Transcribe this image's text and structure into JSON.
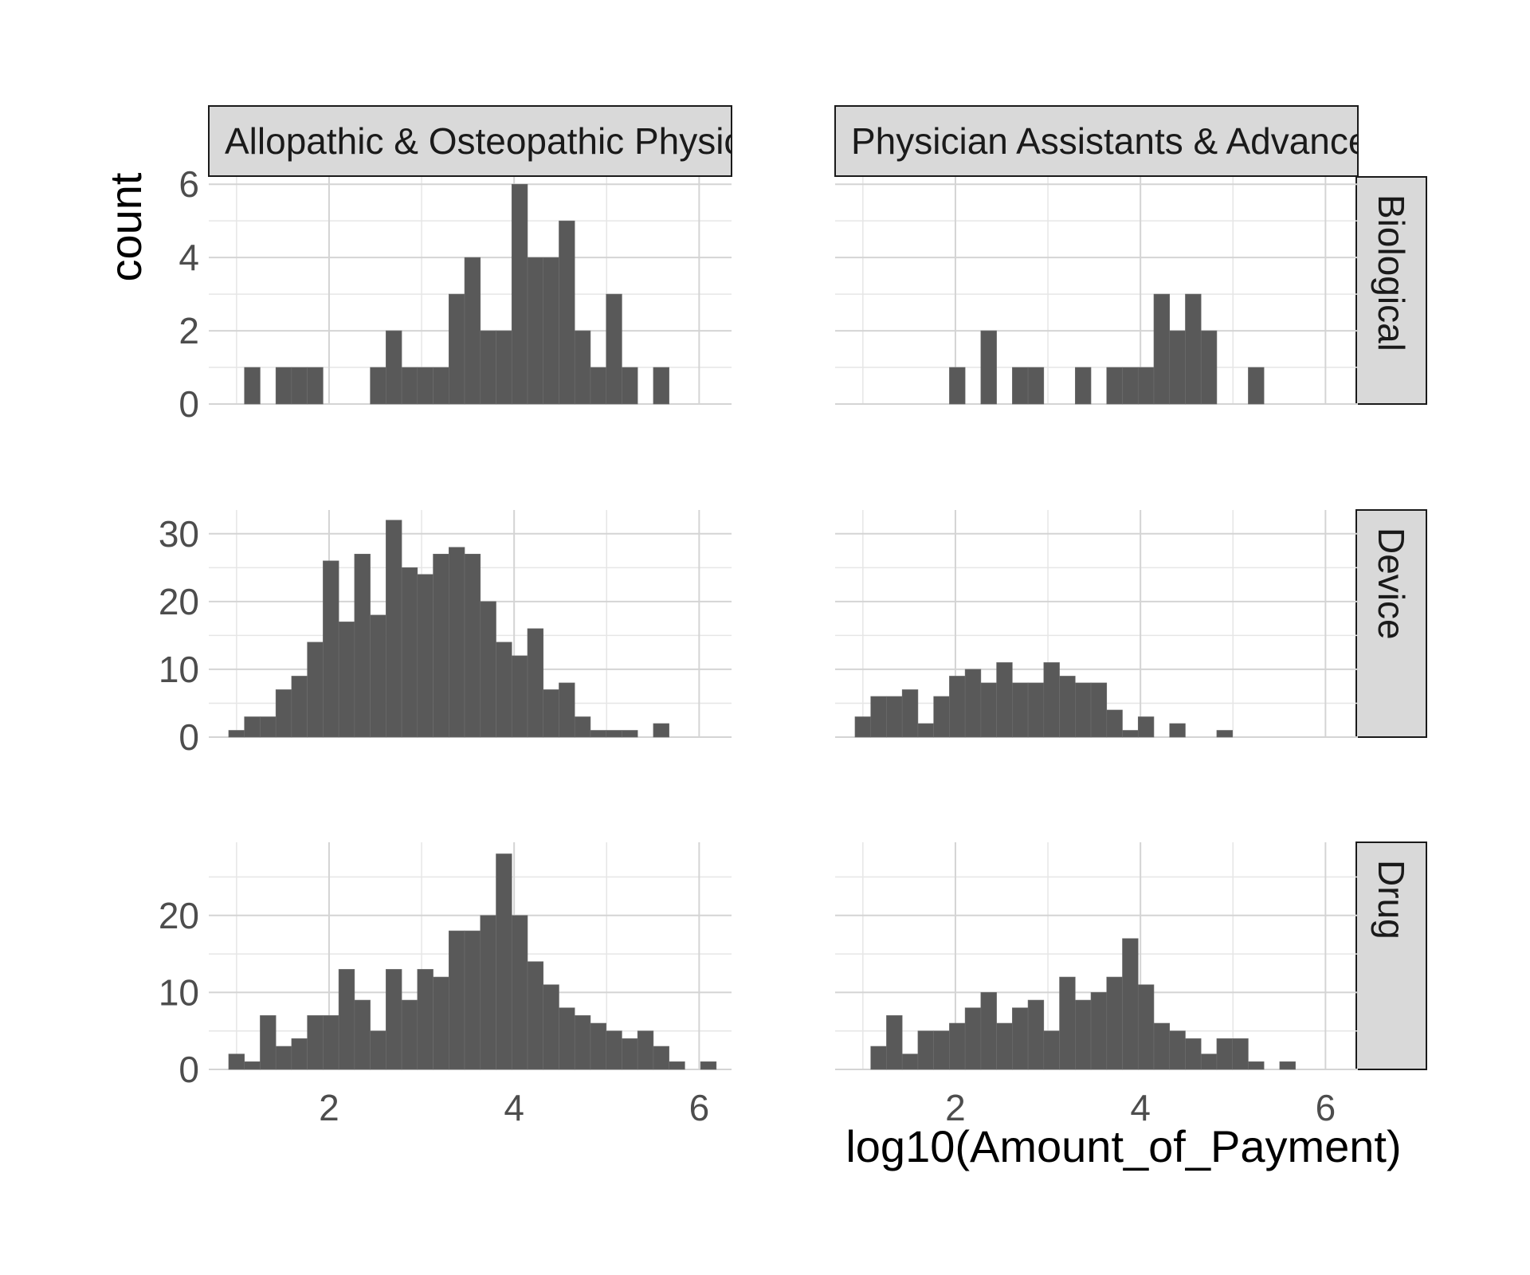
{
  "chart_data": {
    "type": "bar",
    "xlabel": "log10(Amount_of_Payment)",
    "ylabel": "count",
    "bin_width": 0.17,
    "first_bin_center": 1.0,
    "xlim": [
      0.7,
      6.35
    ],
    "x_ticks": [
      2,
      4,
      6
    ],
    "columns": [
      "Allopathic & Osteopathic Physicia",
      "Physician Assistants & Advanced"
    ],
    "rows": [
      {
        "name": "Biological",
        "ylim": [
          0,
          6.2
        ],
        "y_ticks": [
          0,
          2,
          4,
          6
        ],
        "panels": [
          {
            "counts": [
              0,
              1,
              0,
              1,
              1,
              1,
              0,
              0,
              0,
              1,
              2,
              1,
              1,
              1,
              3,
              4,
              2,
              2,
              6,
              4,
              4,
              5,
              2,
              1,
              3,
              1,
              0,
              1,
              0,
              0,
              0,
              0
            ]
          },
          {
            "counts": [
              0,
              0,
              0,
              0,
              0,
              0,
              1,
              0,
              2,
              0,
              1,
              1,
              0,
              0,
              1,
              0,
              1,
              1,
              1,
              3,
              2,
              3,
              2,
              0,
              0,
              1,
              0,
              0,
              0,
              0,
              0,
              0
            ]
          }
        ]
      },
      {
        "name": "Device",
        "ylim": [
          0,
          33.5
        ],
        "y_ticks": [
          0,
          10,
          20,
          30
        ],
        "panels": [
          {
            "counts": [
              1,
              3,
              3,
              7,
              9,
              14,
              26,
              17,
              27,
              18,
              32,
              25,
              24,
              27,
              28,
              27,
              20,
              14,
              12,
              16,
              7,
              8,
              3,
              1,
              1,
              1,
              0,
              2,
              0,
              0,
              0,
              0
            ]
          },
          {
            "counts": [
              3,
              6,
              6,
              7,
              2,
              6,
              9,
              10,
              8,
              11,
              8,
              8,
              11,
              9,
              8,
              8,
              4,
              1,
              3,
              0,
              2,
              0,
              0,
              1,
              0,
              0,
              0,
              0,
              0,
              0,
              0,
              0
            ]
          }
        ]
      },
      {
        "name": "Drug",
        "ylim": [
          0,
          29.5
        ],
        "y_ticks": [
          0,
          10,
          20
        ],
        "panels": [
          {
            "counts": [
              2,
              1,
              7,
              3,
              4,
              7,
              7,
              13,
              9,
              5,
              13,
              9,
              13,
              12,
              18,
              18,
              20,
              28,
              20,
              14,
              11,
              8,
              7,
              6,
              5,
              4,
              5,
              3,
              1,
              0,
              1,
              0
            ]
          },
          {
            "counts": [
              0,
              3,
              7,
              2,
              5,
              5,
              6,
              8,
              10,
              6,
              8,
              9,
              5,
              12,
              9,
              10,
              12,
              17,
              11,
              6,
              5,
              4,
              2,
              4,
              4,
              1,
              0,
              1,
              0,
              0,
              0,
              0
            ]
          }
        ]
      }
    ],
    "grid": true,
    "bar_color": "#595959"
  }
}
